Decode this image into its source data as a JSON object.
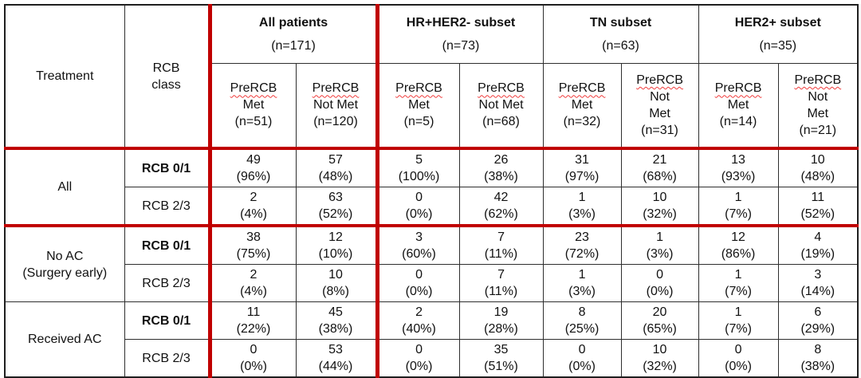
{
  "colors": {
    "accent_red": "#c00000",
    "highlight_blue": "#dbe5f1",
    "grid_black": "#2e2e2e"
  },
  "header": {
    "treatment_label": "Treatment",
    "rcb_class_lines": [
      "RCB",
      "class"
    ],
    "groups": [
      {
        "title": "All patients",
        "n": "(n=171)",
        "cols": [
          {
            "lines": [
              "PreRCB",
              "Met",
              "(n=51)"
            ]
          },
          {
            "lines": [
              "PreRCB",
              "Not Met",
              "(n=120)"
            ]
          }
        ]
      },
      {
        "title": "HR+HER2- subset",
        "n": "(n=73)",
        "cols": [
          {
            "lines": [
              "PreRCB",
              "Met",
              "(n=5)"
            ]
          },
          {
            "lines": [
              "PreRCB",
              "Not Met",
              "(n=68)"
            ]
          }
        ]
      },
      {
        "title": "TN subset",
        "n": "(n=63)",
        "cols": [
          {
            "lines": [
              "PreRCB",
              "Met",
              "(n=32)"
            ]
          },
          {
            "lines": [
              "PreRCB",
              "Not",
              "Met",
              "(n=31)"
            ]
          }
        ]
      },
      {
        "title": "HER2+ subset",
        "n": "(n=35)",
        "cols": [
          {
            "lines": [
              "PreRCB",
              "Met",
              "(n=14)"
            ]
          },
          {
            "lines": [
              "PreRCB",
              "Not",
              "Met",
              "(n=21)"
            ]
          }
        ]
      }
    ]
  },
  "body": {
    "sections": [
      {
        "treatment_lines": [
          "All"
        ],
        "rows": [
          {
            "rcb": "RCB 0/1",
            "highlight": true,
            "cells": [
              {
                "v": "49",
                "p": "(96%)"
              },
              {
                "v": "57",
                "p": "(48%)"
              },
              {
                "v": "5",
                "p": "(100%)"
              },
              {
                "v": "26",
                "p": "(38%)"
              },
              {
                "v": "31",
                "p": "(97%)"
              },
              {
                "v": "21",
                "p": "(68%)"
              },
              {
                "v": "13",
                "p": "(93%)"
              },
              {
                "v": "10",
                "p": "(48%)"
              }
            ]
          },
          {
            "rcb": "RCB 2/3",
            "highlight": false,
            "cells": [
              {
                "v": "2",
                "p": "(4%)"
              },
              {
                "v": "63",
                "p": "(52%)"
              },
              {
                "v": "0",
                "p": "(0%)"
              },
              {
                "v": "42",
                "p": "(62%)"
              },
              {
                "v": "1",
                "p": "(3%)"
              },
              {
                "v": "10",
                "p": "(32%)"
              },
              {
                "v": "1",
                "p": "(7%)"
              },
              {
                "v": "11",
                "p": "(52%)"
              }
            ]
          }
        ]
      },
      {
        "treatment_lines": [
          "No AC",
          "(Surgery early)"
        ],
        "rows": [
          {
            "rcb": "RCB 0/1",
            "highlight": true,
            "cells": [
              {
                "v": "38",
                "p": "(75%)"
              },
              {
                "v": "12",
                "p": "(10%)"
              },
              {
                "v": "3",
                "p": "(60%)"
              },
              {
                "v": "7",
                "p": "(11%)"
              },
              {
                "v": "23",
                "p": "(72%)"
              },
              {
                "v": "1",
                "p": "(3%)"
              },
              {
                "v": "12",
                "p": "(86%)"
              },
              {
                "v": "4",
                "p": "(19%)"
              }
            ]
          },
          {
            "rcb": "RCB 2/3",
            "highlight": false,
            "cells": [
              {
                "v": "2",
                "p": "(4%)"
              },
              {
                "v": "10",
                "p": "(8%)"
              },
              {
                "v": "0",
                "p": "(0%)"
              },
              {
                "v": "7",
                "p": "(11%)"
              },
              {
                "v": "1",
                "p": "(3%)"
              },
              {
                "v": "0",
                "p": "(0%)"
              },
              {
                "v": "1",
                "p": "(7%)"
              },
              {
                "v": "3",
                "p": "(14%)"
              }
            ]
          }
        ]
      },
      {
        "treatment_lines": [
          "Received AC"
        ],
        "rows": [
          {
            "rcb": "RCB 0/1",
            "highlight": true,
            "cells": [
              {
                "v": "11",
                "p": "(22%)"
              },
              {
                "v": "45",
                "p": "(38%)"
              },
              {
                "v": "2",
                "p": "(40%)"
              },
              {
                "v": "19",
                "p": "(28%)"
              },
              {
                "v": "8",
                "p": "(25%)"
              },
              {
                "v": "20",
                "p": "(65%)"
              },
              {
                "v": "1",
                "p": "(7%)"
              },
              {
                "v": "6",
                "p": "(29%)"
              }
            ]
          },
          {
            "rcb": "RCB 2/3",
            "highlight": false,
            "cells": [
              {
                "v": "0",
                "p": "(0%)"
              },
              {
                "v": "53",
                "p": "(44%)"
              },
              {
                "v": "0",
                "p": "(0%)"
              },
              {
                "v": "35",
                "p": "(51%)"
              },
              {
                "v": "0",
                "p": "(0%)"
              },
              {
                "v": "10",
                "p": "(32%)"
              },
              {
                "v": "0",
                "p": "(0%)"
              },
              {
                "v": "8",
                "p": "(38%)"
              }
            ]
          }
        ]
      }
    ]
  }
}
